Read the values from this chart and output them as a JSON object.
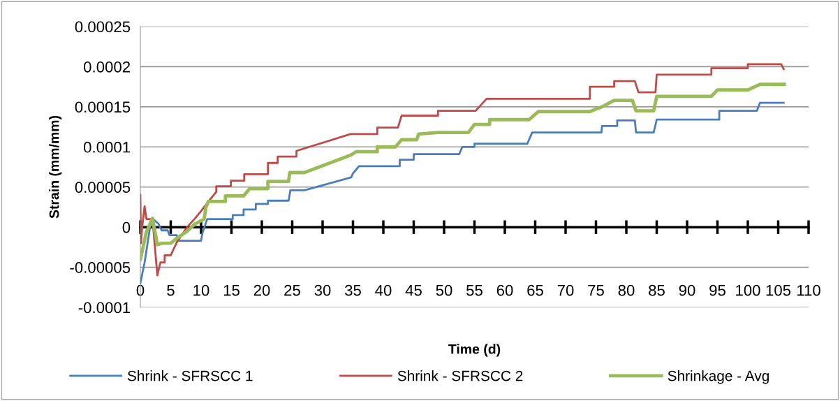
{
  "chart_data": {
    "type": "line",
    "xlabel": "Time (d)",
    "ylabel": "Strain (mm/mm)",
    "xlim": [
      0,
      110
    ],
    "xticks": [
      0,
      5,
      10,
      15,
      20,
      25,
      30,
      35,
      40,
      45,
      50,
      55,
      60,
      65,
      70,
      75,
      80,
      85,
      90,
      95,
      100,
      105,
      110
    ],
    "ylim": [
      -0.0001,
      0.00025
    ],
    "yticks": [
      {
        "value": -0.0001,
        "label": "-0.0001"
      },
      {
        "value": -5e-05,
        "label": "-0.00005"
      },
      {
        "value": 0,
        "label": "0"
      },
      {
        "value": 5e-05,
        "label": "0.00005"
      },
      {
        "value": 0.0001,
        "label": "0.0001"
      },
      {
        "value": 0.00015,
        "label": "0.00015"
      },
      {
        "value": 0.0002,
        "label": "0.0002"
      },
      {
        "value": 0.00025,
        "label": "0.00025"
      }
    ],
    "grid": "y",
    "legend": "bottom",
    "line_style": "solid",
    "marker": "none",
    "series": [
      {
        "name": "Shrink - SFRSCC 1",
        "color": "#4a7ebb",
        "x": [
          0,
          0.7,
          1.6,
          2.1,
          3,
          3.5,
          4.5,
          4.8,
          6,
          6,
          10,
          10.2,
          11,
          15.2,
          15.2,
          17,
          17,
          19,
          19,
          21,
          21,
          24.4,
          24.7,
          27,
          34.7,
          35,
          36,
          42.7,
          42.7,
          45,
          45,
          52.5,
          53,
          55,
          55,
          63.7,
          64.5,
          75.9,
          76,
          78.5,
          78.5,
          81.4,
          81.6,
          84.5,
          85,
          95.3,
          95.3,
          101.5,
          102,
          105.9
        ],
        "values": [
          -7e-05,
          -4.4e-05,
          0,
          1e-05,
          4e-06,
          -4e-06,
          -4e-06,
          -1e-05,
          -1e-05,
          -1.7e-05,
          -1.7e-05,
          -8e-06,
          1e-05,
          1e-05,
          1.5e-05,
          1.5e-05,
          2.2e-05,
          2.2e-05,
          2.9e-05,
          2.9e-05,
          3.3e-05,
          3.3e-05,
          4.6e-05,
          4.6e-05,
          6.2e-05,
          6.7e-05,
          7.6e-05,
          7.6e-05,
          8.4e-05,
          8.4e-05,
          9.1e-05,
          9.1e-05,
          0.0001,
          0.0001,
          0.000104,
          0.000104,
          0.000118,
          0.000118,
          0.000126,
          0.000126,
          0.000133,
          0.000133,
          0.000118,
          0.000118,
          0.000134,
          0.000134,
          0.000145,
          0.000145,
          0.000155,
          0.000155
        ]
      },
      {
        "name": "Shrink - SFRSCC 2",
        "color": "#be4b48",
        "x": [
          0,
          0.1,
          0.3,
          0.7,
          1,
          2,
          2.8,
          3.3,
          4,
          4,
          5,
          5.5,
          6,
          6.9,
          7.7,
          8.9,
          10,
          11,
          12.5,
          12.5,
          14.9,
          14.9,
          17.1,
          17.1,
          21,
          21,
          22.6,
          22.6,
          25.7,
          25.7,
          34.6,
          39,
          39,
          42.4,
          43,
          49,
          49,
          55.2,
          57,
          74,
          74,
          78,
          78,
          81.4,
          82,
          84.8,
          85,
          94,
          94,
          100,
          100,
          105.5,
          105.9
        ],
        "values": [
          4e-05,
          -2e-05,
          0,
          2.6e-05,
          1e-05,
          1e-05,
          -6e-05,
          -4.4e-05,
          -4.4e-05,
          -3.5e-05,
          -3.5e-05,
          -2.7e-05,
          -1.9e-05,
          -9e-06,
          0,
          1e-05,
          2e-05,
          3e-05,
          4.4e-05,
          5.1e-05,
          5.1e-05,
          5.8e-05,
          5.8e-05,
          6.6e-05,
          6.6e-05,
          8e-05,
          8e-05,
          8.8e-05,
          8.8e-05,
          9.5e-05,
          0.000116,
          0.000116,
          0.000124,
          0.000124,
          0.000139,
          0.000139,
          0.000145,
          0.000145,
          0.00016,
          0.00016,
          0.000175,
          0.000175,
          0.000182,
          0.000182,
          0.000168,
          0.000168,
          0.00019,
          0.00019,
          0.000198,
          0.000198,
          0.000203,
          0.000203,
          0.000197
        ]
      },
      {
        "name": "Shrinkage - Avg",
        "color": "#9bbb59",
        "x": [
          0,
          1,
          2,
          2.8,
          3.5,
          5,
          6,
          7.7,
          9,
          10.5,
          10.8,
          11.2,
          14,
          14,
          17,
          18,
          21,
          21,
          24.4,
          24.6,
          27,
          34.7,
          35.5,
          39,
          39,
          42,
          43,
          45.5,
          45.8,
          49,
          54,
          55,
          57.5,
          57.5,
          64,
          65.5,
          74,
          76,
          78,
          81,
          81.6,
          84.5,
          85,
          94,
          95,
          100,
          102,
          106
        ],
        "values": [
          -4e-05,
          -6e-06,
          1.1e-05,
          -2.2e-05,
          -2e-05,
          -2e-05,
          -1.4e-05,
          -5e-06,
          4e-06,
          1e-05,
          2.5e-05,
          3.2e-05,
          3.2e-05,
          3.9e-05,
          3.9e-05,
          4.8e-05,
          4.8e-05,
          5.7e-05,
          5.7e-05,
          6.8e-05,
          6.8e-05,
          9e-05,
          9.4e-05,
          9.4e-05,
          0.0001,
          0.0001,
          0.000109,
          0.000109,
          0.000116,
          0.000118,
          0.000118,
          0.000128,
          0.000128,
          0.000134,
          0.000134,
          0.000144,
          0.000144,
          0.00015,
          0.000158,
          0.000158,
          0.000145,
          0.000145,
          0.000163,
          0.000163,
          0.000171,
          0.000171,
          0.000178,
          0.000178
        ]
      }
    ]
  }
}
